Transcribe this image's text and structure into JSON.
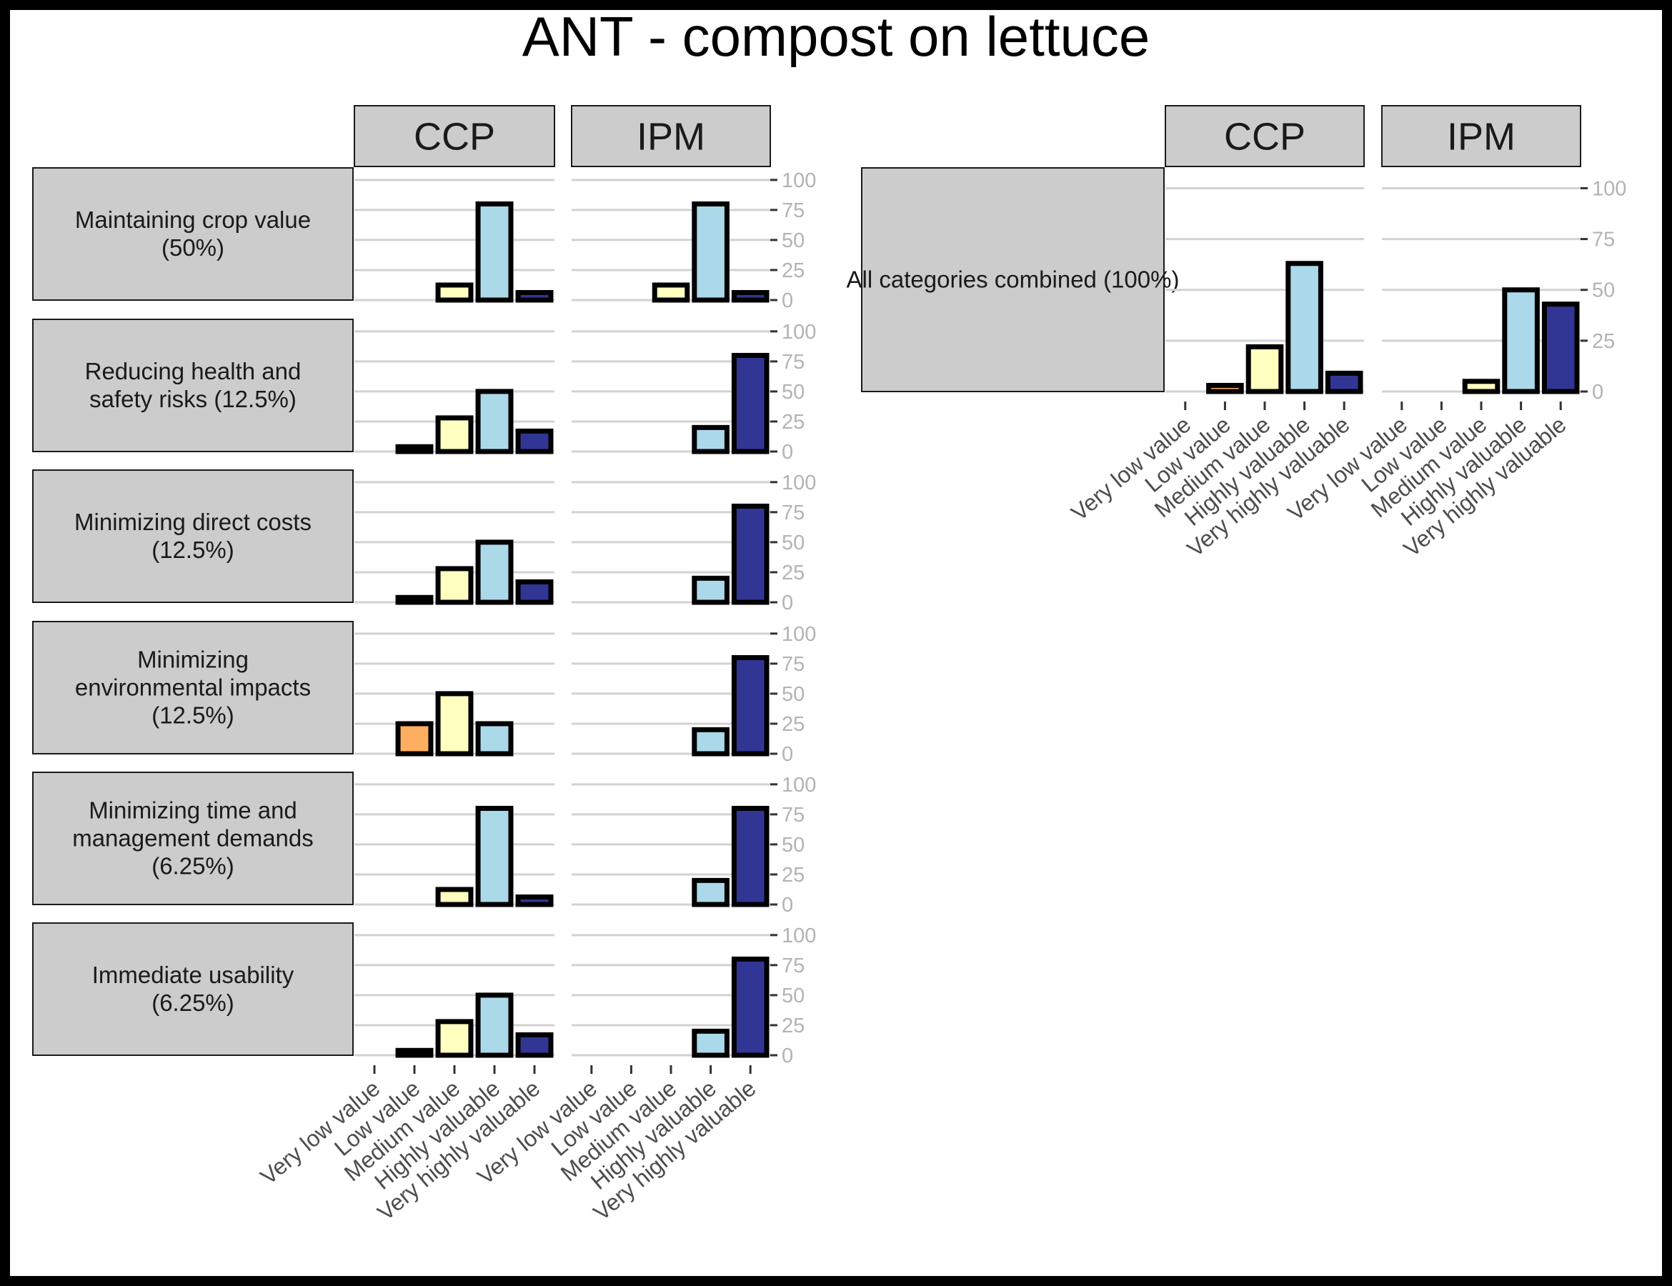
{
  "chart_data": {
    "type": "bar",
    "title": "ANT - compost on lettuce",
    "categories": [
      "Very low value",
      "Low value",
      "Medium value",
      "Highly valuable",
      "Very highly valuable"
    ],
    "category_colors": [
      "#000000",
      "#FDAE61",
      "#FFFFBF",
      "#ABD9E9",
      "#313695"
    ],
    "ylim": [
      0,
      100
    ],
    "y_ticks": [
      "0",
      "25",
      "50",
      "75",
      "100"
    ],
    "grid": true,
    "panels": [
      "CCP",
      "IPM"
    ],
    "rows": [
      {
        "label": "Maintaining crop value (50%)",
        "series": [
          {
            "panel": "CCP",
            "values": [
              0,
              0,
              12.5,
              80,
              6.25
            ]
          },
          {
            "panel": "IPM",
            "values": [
              0,
              0,
              12.5,
              80,
              6.25
            ]
          }
        ]
      },
      {
        "label": "Reducing health and safety risks (12.5%)",
        "series": [
          {
            "panel": "CCP",
            "values": [
              0,
              4,
              28,
              50,
              17
            ]
          },
          {
            "panel": "IPM",
            "values": [
              0,
              0,
              0,
              20,
              80
            ]
          }
        ]
      },
      {
        "label": "Minimizing direct costs (12.5%)",
        "series": [
          {
            "panel": "CCP",
            "values": [
              0,
              4,
              28,
              50,
              17
            ]
          },
          {
            "panel": "IPM",
            "values": [
              0,
              0,
              0,
              20,
              80
            ]
          }
        ]
      },
      {
        "label": "Minimizing environmental impacts (12.5%)",
        "series": [
          {
            "panel": "CCP",
            "values": [
              0,
              25,
              50,
              25,
              0
            ]
          },
          {
            "panel": "IPM",
            "values": [
              0,
              0,
              0,
              20,
              80
            ]
          }
        ]
      },
      {
        "label": "Minimizing time and management demands (6.25%)",
        "series": [
          {
            "panel": "CCP",
            "values": [
              0,
              0,
              12.5,
              80,
              6.25
            ]
          },
          {
            "panel": "IPM",
            "values": [
              0,
              0,
              0,
              20,
              80
            ]
          }
        ]
      },
      {
        "label": "Immediate usability (6.25%)",
        "series": [
          {
            "panel": "CCP",
            "values": [
              0,
              4,
              28,
              50,
              17
            ]
          },
          {
            "panel": "IPM",
            "values": [
              0,
              0,
              0,
              20,
              80
            ]
          }
        ]
      }
    ],
    "combined": {
      "label": "All categories combined (100%)",
      "series": [
        {
          "panel": "CCP",
          "values": [
            0,
            3,
            22,
            63,
            9
          ]
        },
        {
          "panel": "IPM",
          "values": [
            0,
            0,
            5,
            50,
            43
          ]
        }
      ]
    }
  }
}
